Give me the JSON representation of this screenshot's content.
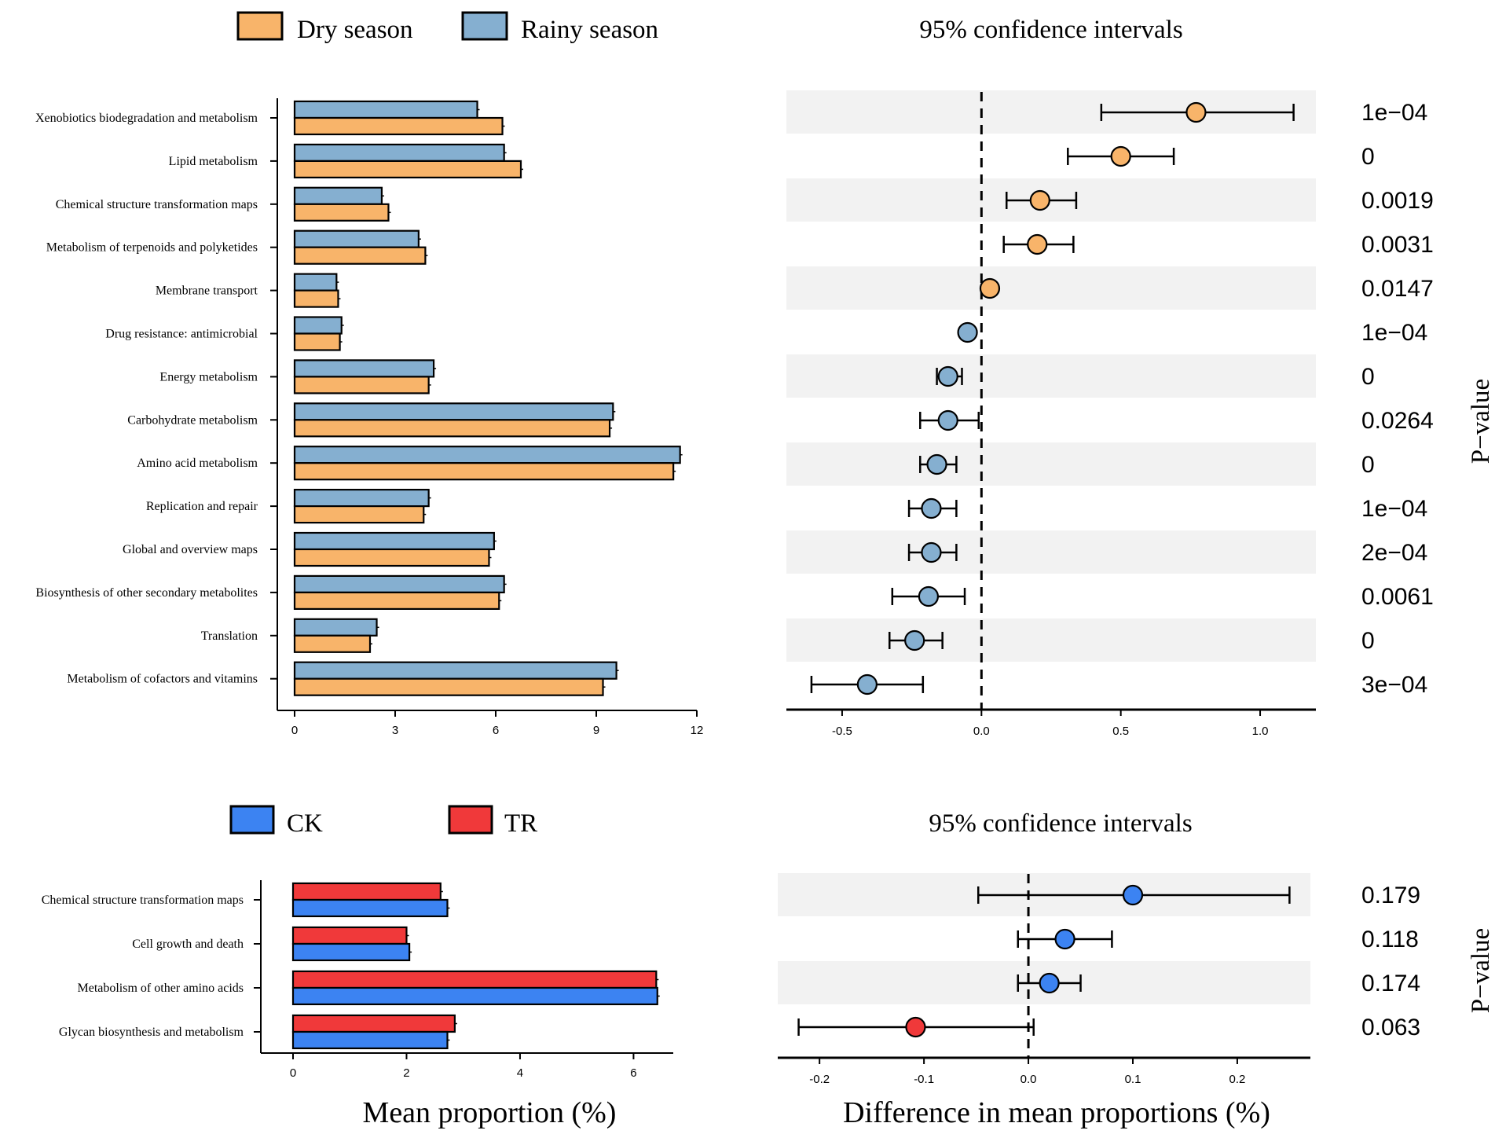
{
  "colors": {
    "dry": "#F8B46A",
    "rainy": "#85AFD0",
    "ck": "#3C83F2",
    "tr": "#F0393A",
    "stripe": "#F2F2F2"
  },
  "chart_data": [
    {
      "type": "bar",
      "orientation": "horizontal",
      "legend": [
        "Dry season",
        "Rainy season"
      ],
      "categories": [
        "Xenobiotics biodegradation and metabolism",
        "Lipid metabolism",
        "Chemical structure transformation maps",
        "Metabolism of terpenoids and polyketides",
        "Membrane transport",
        "Drug resistance: antimicrobial",
        "Energy metabolism",
        "Carbohydrate metabolism",
        "Amino acid metabolism",
        "Replication and repair",
        "Global and overview maps",
        "Biosynthesis of other secondary metabolites",
        "Translation",
        "Metabolism of cofactors and vitamins"
      ],
      "series": [
        {
          "name": "Rainy season",
          "values": [
            5.45,
            6.25,
            2.6,
            3.7,
            1.25,
            1.4,
            4.15,
            9.5,
            11.5,
            4.0,
            5.95,
            6.25,
            2.45,
            9.6
          ]
        },
        {
          "name": "Dry season",
          "values": [
            6.2,
            6.75,
            2.8,
            3.9,
            1.3,
            1.35,
            4.0,
            9.4,
            11.3,
            3.85,
            5.8,
            6.1,
            2.25,
            9.2
          ]
        }
      ],
      "xlim": [
        0,
        12
      ],
      "xticks": [
        "0",
        "3",
        "6",
        "9",
        "12"
      ]
    },
    {
      "type": "scatter",
      "subtype": "confidence-interval",
      "title": "95% confidence intervals",
      "differences": [
        0.77,
        0.5,
        0.21,
        0.2,
        0.03,
        -0.05,
        -0.12,
        -0.12,
        -0.16,
        -0.18,
        -0.18,
        -0.19,
        -0.24,
        -0.41
      ],
      "ci_low": [
        0.43,
        0.31,
        0.09,
        0.08,
        0.03,
        -0.05,
        -0.16,
        -0.22,
        -0.22,
        -0.26,
        -0.26,
        -0.32,
        -0.33,
        -0.61
      ],
      "ci_high": [
        1.12,
        0.69,
        0.34,
        0.33,
        0.03,
        -0.05,
        -0.07,
        -0.01,
        -0.09,
        -0.09,
        -0.09,
        -0.06,
        -0.14,
        -0.21
      ],
      "enriched_in": [
        "Dry season",
        "Dry season",
        "Dry season",
        "Dry season",
        "Dry season",
        "Rainy season",
        "Rainy season",
        "Rainy season",
        "Rainy season",
        "Rainy season",
        "Rainy season",
        "Rainy season",
        "Rainy season",
        "Rainy season"
      ],
      "p_values": [
        "1e−04",
        "0",
        "0.0019",
        "0.0031",
        "0.0147",
        "1e−04",
        "0",
        "0.0264",
        "0",
        "1e−04",
        "2e−04",
        "0.0061",
        "0",
        "3e−04"
      ],
      "xlim": [
        -0.7,
        1.2
      ],
      "xticks": [
        "-0.5",
        "0.0",
        "0.5",
        "1.0"
      ],
      "p_label": "P−value"
    },
    {
      "type": "bar",
      "orientation": "horizontal",
      "legend": [
        "CK",
        "TR"
      ],
      "categories": [
        "Chemical structure transformation maps",
        "Cell growth and death",
        "Metabolism of other amino acids",
        "Glycan biosynthesis and metabolism"
      ],
      "series": [
        {
          "name": "TR",
          "values": [
            2.6,
            2.0,
            6.4,
            2.85
          ]
        },
        {
          "name": "CK",
          "values": [
            2.72,
            2.05,
            6.42,
            2.72
          ]
        }
      ],
      "xlim": [
        0,
        6.7
      ],
      "xticks": [
        "0",
        "2",
        "4",
        "6"
      ],
      "xlabel": "Mean proportion (%)"
    },
    {
      "type": "scatter",
      "subtype": "confidence-interval",
      "title": "95% confidence intervals",
      "differences": [
        0.1,
        0.035,
        0.02,
        -0.108
      ],
      "ci_low": [
        -0.048,
        -0.01,
        -0.01,
        -0.22
      ],
      "ci_high": [
        0.25,
        0.08,
        0.05,
        0.005
      ],
      "enriched_in": [
        "CK",
        "CK",
        "CK",
        "TR"
      ],
      "p_values": [
        "0.179",
        "0.118",
        "0.174",
        "0.063"
      ],
      "xlim": [
        -0.24,
        0.27
      ],
      "xticks": [
        "-0.2",
        "-0.1",
        "0.0",
        "0.1",
        "0.2"
      ],
      "xlabel": "Difference in mean proportions (%)",
      "p_label": "P−value"
    }
  ]
}
